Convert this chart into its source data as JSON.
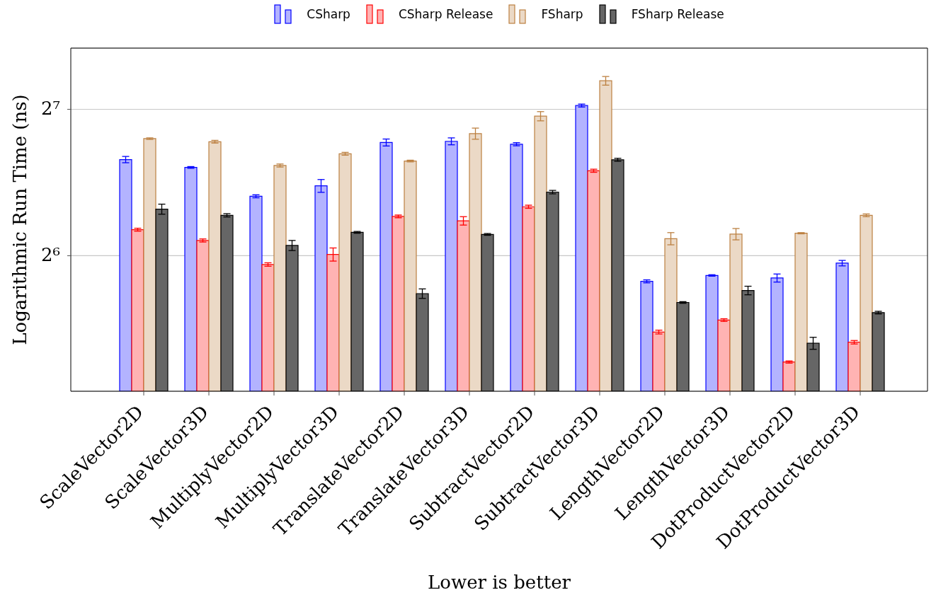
{
  "chart_data": {
    "type": "bar",
    "xlabel": "Lower is better",
    "ylabel": "Logarithmic Run Time (ns)",
    "categories": [
      "ScaleVector2D",
      "ScaleVector3D",
      "MultiplyVector2D",
      "MultiplyVector3D",
      "TranslateVector2D",
      "TranslateVector3D",
      "SubtractVector2D",
      "SubtractVector3D",
      "LengthVector2D",
      "LengthVector3D",
      "DotProductVector2D",
      "DotProductVector3D"
    ],
    "series": [
      {
        "name": "CSharp",
        "color": "#b3b3ff",
        "values": [
          100.9,
          97.2,
          84.8,
          89.1,
          109.4,
          110.0,
          108.5,
          130.3,
          56.7,
          58.3,
          57.6,
          61.8
        ],
        "errors": [
          1.5,
          0.4,
          0.6,
          2.7,
          1.8,
          1.8,
          0.8,
          0.9,
          0.4,
          0.2,
          1.1,
          0.8
        ]
      },
      {
        "name": "CSharp Release",
        "color": "#ffb3b3",
        "values": [
          72.4,
          68.8,
          61.4,
          64.4,
          77.1,
          75.5,
          80.7,
          95.7,
          44.6,
          47.2,
          38.7,
          42.5
        ],
        "errors": [
          0.5,
          0.5,
          0.5,
          2.0,
          0.5,
          1.5,
          0.6,
          0.7,
          0.4,
          0.3,
          0.2,
          0.35
        ]
      },
      {
        "name": "FSharp",
        "color": "#ebd9c6",
        "values": [
          111.4,
          109.8,
          98.1,
          103.7,
          100.2,
          114.1,
          123.9,
          146.5,
          69.4,
          70.9,
          71.2,
          77.5
        ],
        "errors": [
          0.4,
          0.7,
          0.7,
          0.7,
          0.4,
          3.0,
          2.7,
          3.0,
          2.0,
          1.9,
          0.2,
          0.5
        ]
      },
      {
        "name": "FSharp Release",
        "color": "#666666",
        "values": [
          79.8,
          77.5,
          67.2,
          71.5,
          53.5,
          70.8,
          86.5,
          100.8,
          51.3,
          54.3,
          42.3,
          48.9
        ],
        "errors": [
          1.9,
          0.6,
          1.6,
          0.3,
          1.2,
          0.3,
          0.7,
          0.7,
          0.2,
          1.1,
          1.2,
          0.3
        ]
      }
    ],
    "ylim": [
      33.7,
      171
    ],
    "yticks": [
      {
        "value": 64,
        "label": "2⁶"
      },
      {
        "value": 128,
        "label": "2⁷"
      }
    ],
    "log": "y",
    "grid": "y",
    "legend": "top"
  }
}
